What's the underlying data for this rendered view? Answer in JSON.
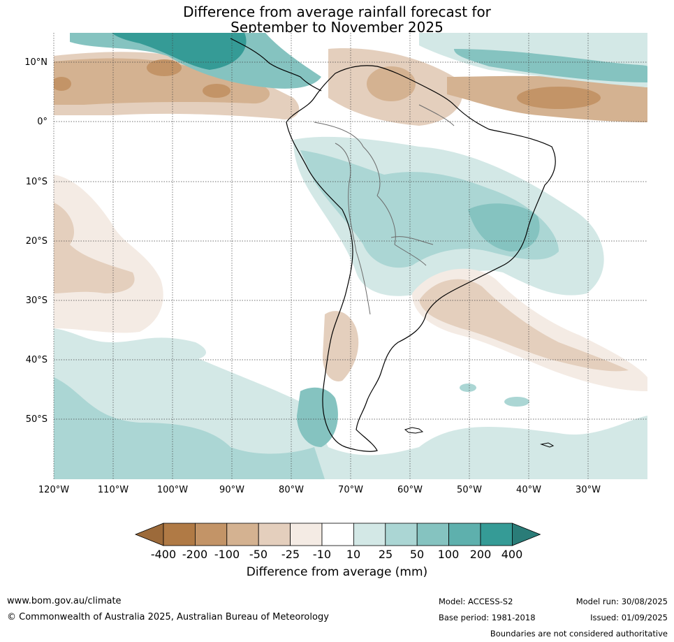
{
  "title": {
    "line1": "Difference from average rainfall forecast for",
    "line2": "September to November 2025"
  },
  "map": {
    "lat_labels": [
      "10°N",
      "0°",
      "10°S",
      "20°S",
      "30°S",
      "40°S",
      "50°S"
    ],
    "lon_labels": [
      "120°W",
      "110°W",
      "100°W",
      "90°W",
      "80°W",
      "70°W",
      "60°W",
      "50°W",
      "40°W",
      "30°W"
    ]
  },
  "legend": {
    "title": "Difference from average (mm)",
    "labels": [
      "-400",
      "-200",
      "-100",
      "-50",
      "-25",
      "-10",
      "10",
      "25",
      "50",
      "100",
      "200",
      "400"
    ],
    "colors": [
      "#9c6a3a",
      "#b07a45",
      "#c39467",
      "#d4b291",
      "#e4cfbd",
      "#f4ebe4",
      "#ffffff",
      "#d3e8e6",
      "#abd6d4",
      "#85c3c0",
      "#5eb0ad",
      "#359b96",
      "#2a7c78"
    ]
  },
  "footer": {
    "website": "www.bom.gov.au/climate",
    "copyright": "© Commonwealth of Australia 2025, Australian Bureau of Meteorology",
    "model": "Model: ACCESS-S2",
    "base_period": "Base period: 1981-2018",
    "model_run": "Model run: 30/08/2025",
    "issued": "Issued: 01/09/2025",
    "disclaimer": "Boundaries are not considered authoritative"
  }
}
